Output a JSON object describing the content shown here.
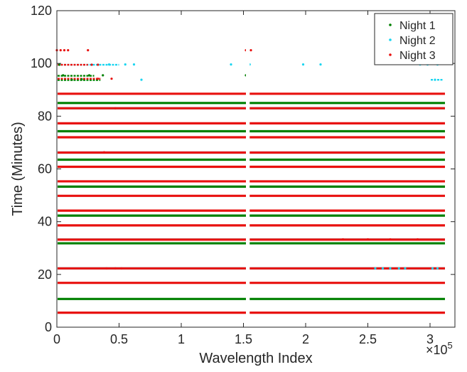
{
  "chart_data": {
    "type": "scatter",
    "xlabel": "Wavelength Index",
    "ylabel": "Time (Minutes)",
    "xlim": [
      0,
      320000
    ],
    "ylim": [
      0,
      120
    ],
    "x_ticks": [
      0,
      50000,
      100000,
      150000,
      200000,
      250000,
      300000
    ],
    "x_tick_labels": [
      "0",
      "0.5",
      "1",
      "1.5",
      "2",
      "2.5",
      "3"
    ],
    "x_exponent_label": "×10",
    "x_exponent_power": "5",
    "y_ticks": [
      0,
      20,
      40,
      60,
      80,
      100,
      120
    ],
    "y_tick_labels": [
      "0",
      "20",
      "40",
      "60",
      "80",
      "100",
      "120"
    ],
    "grid": false,
    "legend_position": "top-right",
    "x_max_data": 312000,
    "gap_x": [
      152000,
      155000
    ],
    "series": [
      {
        "name": "Night 1",
        "color": "#008000",
        "bands": [
          10.7,
          31.8,
          42.3,
          53.3,
          63.5,
          74.3,
          85.0
        ],
        "partial": [
          {
            "y": 95.3,
            "x": [
              0,
              30000
            ]
          },
          {
            "y": 93.7,
            "x": [
              0,
              35000
            ]
          }
        ],
        "scatter": [
          {
            "x": 2000,
            "y": 99.5
          },
          {
            "x": 5000,
            "y": 95.5
          },
          {
            "x": 26000,
            "y": 95.5
          },
          {
            "x": 37000,
            "y": 95.5
          },
          {
            "x": 152000,
            "y": 95.5
          },
          {
            "x": 12000,
            "y": 93.8
          },
          {
            "x": 20000,
            "y": 94.0
          }
        ]
      },
      {
        "name": "Night 2",
        "color": "#1ad5f0",
        "bands": [
          22.3,
          33.2,
          66.2,
          83.0
        ],
        "partial": [
          {
            "y": 99.5,
            "x": [
              0,
              50000
            ]
          },
          {
            "y": 93.8,
            "x": [
              300000,
              310000
            ]
          }
        ],
        "scatter": [
          {
            "x": 42000,
            "y": 99.6
          },
          {
            "x": 55000,
            "y": 99.6
          },
          {
            "x": 62000,
            "y": 99.6
          },
          {
            "x": 68000,
            "y": 93.8
          },
          {
            "x": 140000,
            "y": 99.6
          },
          {
            "x": 155000,
            "y": 99.6
          },
          {
            "x": 198000,
            "y": 99.6
          },
          {
            "x": 212000,
            "y": 99.6
          },
          {
            "x": 292000,
            "y": 99.6
          },
          {
            "x": 298000,
            "y": 99.6
          },
          {
            "x": 306000,
            "y": 99.6
          },
          {
            "x": 304000,
            "y": 93.8
          },
          {
            "x": 302000,
            "y": 22.3
          },
          {
            "x": 306000,
            "y": 22.3
          },
          {
            "x": 256000,
            "y": 22.3
          },
          {
            "x": 262000,
            "y": 22.3
          },
          {
            "x": 268000,
            "y": 22.3
          },
          {
            "x": 275000,
            "y": 22.3
          },
          {
            "x": 280000,
            "y": 22.3
          }
        ]
      },
      {
        "name": "Night 3",
        "color": "#e8110f",
        "bands": [
          5.5,
          16.8,
          22.3,
          33.2,
          38.6,
          44.2,
          49.8,
          55.3,
          60.8,
          66.2,
          72.0,
          77.3,
          83.0,
          88.5
        ],
        "partial": [
          {
            "y": 99.5,
            "x": [
              0,
              25000
            ]
          },
          {
            "y": 94.2,
            "x": [
              0,
              35000
            ]
          }
        ],
        "scatter": [
          {
            "x": 0,
            "y": 105
          },
          {
            "x": 3000,
            "y": 105
          },
          {
            "x": 6000,
            "y": 105
          },
          {
            "x": 9000,
            "y": 105
          },
          {
            "x": 25000,
            "y": 105
          },
          {
            "x": 152000,
            "y": 105
          },
          {
            "x": 156000,
            "y": 105
          },
          {
            "x": 47000,
            "y": 83.0
          },
          {
            "x": 33000,
            "y": 94.2
          },
          {
            "x": 44000,
            "y": 94.2
          },
          {
            "x": 28000,
            "y": 99.5
          },
          {
            "x": 33000,
            "y": 99.5
          },
          {
            "x": 38000,
            "y": 66.3
          },
          {
            "x": 40000,
            "y": 22.3
          },
          {
            "x": 47000,
            "y": 22.3
          },
          {
            "x": 52000,
            "y": 22.3
          },
          {
            "x": 230000,
            "y": 33.3
          },
          {
            "x": 250000,
            "y": 33.3
          },
          {
            "x": 268000,
            "y": 33.3
          },
          {
            "x": 290000,
            "y": 33.3
          }
        ]
      }
    ]
  }
}
